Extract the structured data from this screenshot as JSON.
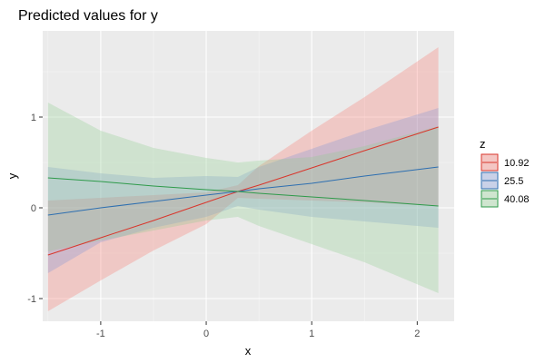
{
  "chart_data": {
    "type": "line",
    "title": "Predicted values for y",
    "xlabel": "x",
    "ylabel": "y",
    "xlim": [
      -1.55,
      2.35
    ],
    "ylim": [
      -1.25,
      1.95
    ],
    "x_ticks": [
      -1,
      0,
      1,
      2
    ],
    "y_ticks": [
      -1,
      0,
      1
    ],
    "grid": true,
    "legend": {
      "title": "z",
      "position": "right"
    },
    "series": [
      {
        "name": "10.92",
        "color": "#d9352b",
        "fill": "#f8766d",
        "x": [
          -1.5,
          -1.0,
          -0.5,
          0.0,
          0.3,
          0.5,
          1.0,
          1.5,
          2.2
        ],
        "y": [
          -0.52,
          -0.33,
          -0.14,
          0.06,
          0.18,
          0.25,
          0.44,
          0.63,
          0.89
        ],
        "lower": [
          -1.14,
          -0.8,
          -0.47,
          -0.18,
          0.11,
          0.1,
          0.08,
          0.06,
          0.02
        ],
        "upper": [
          0.08,
          0.11,
          0.14,
          0.17,
          0.25,
          0.46,
          0.85,
          1.22,
          1.77
        ]
      },
      {
        "name": "25.5",
        "color": "#2e6fb0",
        "fill": "#7f95d6",
        "x": [
          -1.5,
          -1.0,
          -0.5,
          0.0,
          0.3,
          0.5,
          1.0,
          1.5,
          2.2
        ],
        "y": [
          -0.08,
          0.0,
          0.07,
          0.14,
          0.18,
          0.21,
          0.27,
          0.35,
          0.45
        ],
        "lower": [
          -0.72,
          -0.38,
          -0.22,
          -0.1,
          0.02,
          -0.02,
          -0.1,
          -0.15,
          -0.22
        ],
        "upper": [
          0.45,
          0.38,
          0.33,
          0.35,
          0.34,
          0.45,
          0.65,
          0.85,
          1.1
        ]
      },
      {
        "name": "40.08",
        "color": "#2e9a4a",
        "fill": "#8fce8f",
        "x": [
          -1.5,
          -1.0,
          -0.5,
          0.0,
          0.3,
          0.5,
          1.0,
          1.5,
          2.2
        ],
        "y": [
          0.33,
          0.29,
          0.24,
          0.2,
          0.18,
          0.16,
          0.12,
          0.08,
          0.02
        ],
        "lower": [
          -0.48,
          -0.36,
          -0.25,
          -0.14,
          -0.1,
          -0.2,
          -0.4,
          -0.6,
          -0.94
        ],
        "upper": [
          1.16,
          0.85,
          0.66,
          0.55,
          0.5,
          0.52,
          0.56,
          0.68,
          0.9
        ]
      }
    ]
  }
}
